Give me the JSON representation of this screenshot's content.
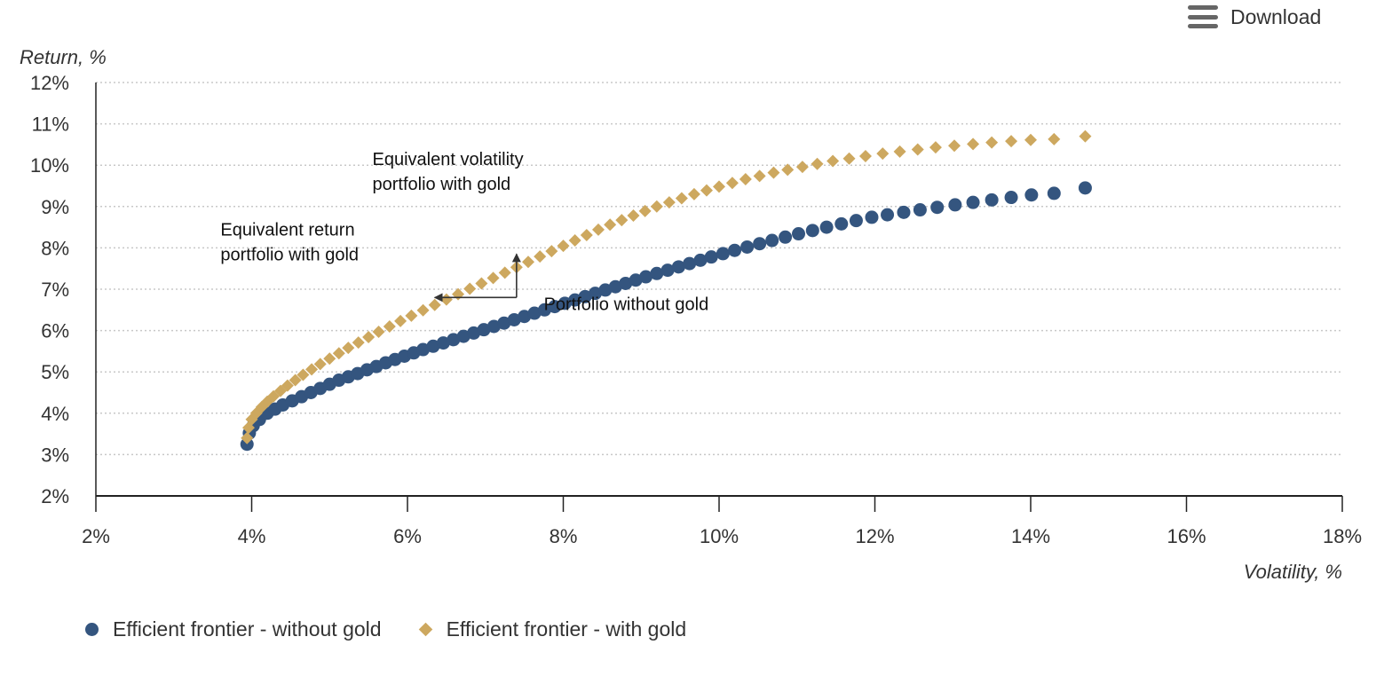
{
  "toolbar": {
    "download_label": "Download",
    "menu_icon": "hamburger-menu-icon"
  },
  "colors": {
    "without_gold": "#34557f",
    "with_gold": "#cda85f",
    "grid": "#c8c8c8",
    "axis": "#222222"
  },
  "chart_data": {
    "type": "scatter",
    "title": "",
    "xlabel": "Volatility, %",
    "ylabel": "Return, %",
    "xlim": [
      2,
      18
    ],
    "ylim": [
      2,
      12
    ],
    "x_ticks": [
      2,
      4,
      6,
      8,
      10,
      12,
      14,
      16,
      18
    ],
    "y_ticks": [
      2,
      3,
      4,
      5,
      6,
      7,
      8,
      9,
      10,
      11,
      12
    ],
    "x_tick_labels": [
      "2%",
      "4%",
      "6%",
      "8%",
      "10%",
      "12%",
      "14%",
      "16%",
      "18%"
    ],
    "y_tick_labels": [
      "2%",
      "3%",
      "4%",
      "5%",
      "6%",
      "7%",
      "8%",
      "9%",
      "10%",
      "11%",
      "12%"
    ],
    "grid": "horizontal dotted",
    "legend_position": "bottom-left",
    "series": [
      {
        "name": "Efficient frontier - without gold",
        "marker": "circle",
        "points": [
          [
            3.94,
            3.25
          ],
          [
            3.97,
            3.52
          ],
          [
            4.02,
            3.7
          ],
          [
            4.1,
            3.85
          ],
          [
            4.2,
            4.0
          ],
          [
            4.3,
            4.1
          ],
          [
            4.4,
            4.2
          ],
          [
            4.52,
            4.3
          ],
          [
            4.64,
            4.4
          ],
          [
            4.76,
            4.5
          ],
          [
            4.88,
            4.6
          ],
          [
            5.0,
            4.7
          ],
          [
            5.12,
            4.8
          ],
          [
            5.24,
            4.88
          ],
          [
            5.36,
            4.96
          ],
          [
            5.48,
            5.05
          ],
          [
            5.6,
            5.13
          ],
          [
            5.72,
            5.22
          ],
          [
            5.84,
            5.3
          ],
          [
            5.96,
            5.38
          ],
          [
            6.08,
            5.46
          ],
          [
            6.2,
            5.54
          ],
          [
            6.33,
            5.62
          ],
          [
            6.46,
            5.7
          ],
          [
            6.59,
            5.78
          ],
          [
            6.72,
            5.86
          ],
          [
            6.85,
            5.94
          ],
          [
            6.98,
            6.02
          ],
          [
            7.11,
            6.1
          ],
          [
            7.24,
            6.18
          ],
          [
            7.37,
            6.26
          ],
          [
            7.5,
            6.34
          ],
          [
            7.63,
            6.42
          ],
          [
            7.76,
            6.5
          ],
          [
            7.89,
            6.58
          ],
          [
            8.02,
            6.66
          ],
          [
            8.15,
            6.74
          ],
          [
            8.28,
            6.82
          ],
          [
            8.41,
            6.9
          ],
          [
            8.54,
            6.98
          ],
          [
            8.67,
            7.06
          ],
          [
            8.8,
            7.14
          ],
          [
            8.93,
            7.22
          ],
          [
            9.06,
            7.3
          ],
          [
            9.2,
            7.38
          ],
          [
            9.34,
            7.46
          ],
          [
            9.48,
            7.54
          ],
          [
            9.62,
            7.62
          ],
          [
            9.76,
            7.7
          ],
          [
            9.9,
            7.78
          ],
          [
            10.05,
            7.86
          ],
          [
            10.2,
            7.94
          ],
          [
            10.36,
            8.02
          ],
          [
            10.52,
            8.1
          ],
          [
            10.68,
            8.18
          ],
          [
            10.85,
            8.26
          ],
          [
            11.02,
            8.34
          ],
          [
            11.2,
            8.42
          ],
          [
            11.38,
            8.5
          ],
          [
            11.57,
            8.58
          ],
          [
            11.76,
            8.66
          ],
          [
            11.96,
            8.74
          ],
          [
            12.16,
            8.8
          ],
          [
            12.37,
            8.86
          ],
          [
            12.58,
            8.92
          ],
          [
            12.8,
            8.98
          ],
          [
            13.03,
            9.04
          ],
          [
            13.26,
            9.1
          ],
          [
            13.5,
            9.16
          ],
          [
            13.75,
            9.22
          ],
          [
            14.01,
            9.28
          ],
          [
            14.3,
            9.32
          ],
          [
            14.7,
            9.45
          ]
        ]
      },
      {
        "name": "Efficient frontier - with gold",
        "marker": "diamond",
        "points": [
          [
            3.94,
            3.4
          ],
          [
            3.96,
            3.65
          ],
          [
            4.0,
            3.85
          ],
          [
            4.06,
            4.0
          ],
          [
            4.13,
            4.15
          ],
          [
            4.2,
            4.28
          ],
          [
            4.28,
            4.41
          ],
          [
            4.37,
            4.54
          ],
          [
            4.46,
            4.67
          ],
          [
            4.56,
            4.8
          ],
          [
            4.66,
            4.93
          ],
          [
            4.77,
            5.06
          ],
          [
            4.88,
            5.19
          ],
          [
            5.0,
            5.32
          ],
          [
            5.12,
            5.45
          ],
          [
            5.24,
            5.58
          ],
          [
            5.37,
            5.71
          ],
          [
            5.5,
            5.84
          ],
          [
            5.63,
            5.97
          ],
          [
            5.77,
            6.1
          ],
          [
            5.91,
            6.23
          ],
          [
            6.05,
            6.36
          ],
          [
            6.2,
            6.49
          ],
          [
            6.35,
            6.62
          ],
          [
            6.5,
            6.75
          ],
          [
            6.65,
            6.88
          ],
          [
            6.8,
            7.01
          ],
          [
            6.95,
            7.14
          ],
          [
            7.1,
            7.27
          ],
          [
            7.25,
            7.4
          ],
          [
            7.4,
            7.53
          ],
          [
            7.55,
            7.66
          ],
          [
            7.7,
            7.79
          ],
          [
            7.85,
            7.92
          ],
          [
            8.0,
            8.05
          ],
          [
            8.15,
            8.18
          ],
          [
            8.3,
            8.31
          ],
          [
            8.45,
            8.44
          ],
          [
            8.6,
            8.56
          ],
          [
            8.75,
            8.67
          ],
          [
            8.9,
            8.78
          ],
          [
            9.05,
            8.89
          ],
          [
            9.2,
            9.0
          ],
          [
            9.36,
            9.1
          ],
          [
            9.52,
            9.2
          ],
          [
            9.68,
            9.3
          ],
          [
            9.84,
            9.39
          ],
          [
            10.0,
            9.48
          ],
          [
            10.17,
            9.57
          ],
          [
            10.34,
            9.66
          ],
          [
            10.52,
            9.74
          ],
          [
            10.7,
            9.82
          ],
          [
            10.88,
            9.89
          ],
          [
            11.07,
            9.96
          ],
          [
            11.26,
            10.03
          ],
          [
            11.46,
            10.1
          ],
          [
            11.67,
            10.16
          ],
          [
            11.88,
            10.22
          ],
          [
            12.1,
            10.28
          ],
          [
            12.32,
            10.33
          ],
          [
            12.55,
            10.38
          ],
          [
            12.78,
            10.43
          ],
          [
            13.02,
            10.47
          ],
          [
            13.26,
            10.51
          ],
          [
            13.5,
            10.55
          ],
          [
            13.75,
            10.58
          ],
          [
            14.0,
            10.61
          ],
          [
            14.3,
            10.63
          ],
          [
            14.7,
            10.7
          ]
        ]
      }
    ],
    "annotations": [
      {
        "id": "equivalent-volatility",
        "lines": [
          "Equivalent volatility",
          "portfolio with gold"
        ],
        "x": 5.55,
        "y": 10.0
      },
      {
        "id": "equivalent-return",
        "lines": [
          "Equivalent return",
          "portfolio with gold"
        ],
        "x": 3.6,
        "y": 8.3
      },
      {
        "id": "portfolio-without-gold",
        "lines": [
          "Portfolio without gold"
        ],
        "x": 7.75,
        "y": 6.5
      }
    ],
    "arrows": [
      {
        "id": "arrow-left",
        "from": [
          7.4,
          6.8
        ],
        "to": [
          6.35,
          6.8
        ]
      },
      {
        "id": "arrow-up",
        "from": [
          7.4,
          6.8
        ],
        "to": [
          7.4,
          7.85
        ]
      }
    ]
  }
}
